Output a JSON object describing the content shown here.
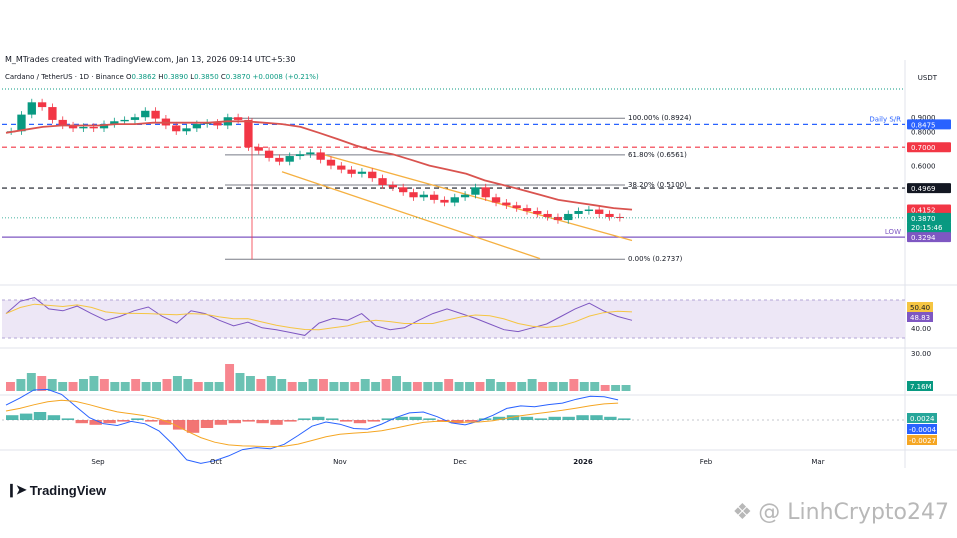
{
  "header": {
    "credit": "M_MTrades created with TradingView.com, Jan 13, 2026 09:14 UTC+5:30",
    "symbol": "Cardano / TetherUS · 1D · Binance",
    "o_label": "O",
    "o": "0.3862",
    "h_label": "H",
    "h": "0.3890",
    "l_label": "L",
    "l": "0.3850",
    "c_label": "C",
    "c": "0.3870",
    "change": "+0.0008 (+0.21%)",
    "unit": "USDT"
  },
  "branding": {
    "logo_text": "TradingView",
    "watermark": "@ LinhCrypto247"
  },
  "colors": {
    "up": "#089981",
    "down": "#f23645",
    "ma": "#d9534f",
    "channel": "#f5b041",
    "fib": "#787b86",
    "rsi": "#7e57c2",
    "macd_signal": "#f5a623",
    "macd": "#2962ff"
  },
  "chart_data": {
    "type": "line",
    "title": "",
    "price_axis": {
      "ticks": [
        "0.9000",
        "0.8000",
        "0.6000"
      ],
      "ylim": [
        0.25,
        1.15
      ],
      "scale": "log"
    },
    "time_axis": {
      "labels": [
        "Sep",
        "Oct",
        "Nov",
        "Dec",
        "2026",
        "Feb",
        "Mar"
      ]
    },
    "price_labels": [
      {
        "text": "0.8475",
        "color": "#2962ff"
      },
      {
        "text": "0.7000",
        "color": "#f23645"
      },
      {
        "text": "0.4969",
        "color": "#131722"
      },
      {
        "text": "0.4152",
        "color": "#f23645"
      },
      {
        "text": "0.3870",
        "color": "#089981"
      },
      {
        "text": "20:15:46",
        "color": "#089981"
      },
      {
        "text": "0.3814",
        "color": "#089981"
      },
      {
        "text": "0.3294",
        "color": "#7e57c2"
      }
    ],
    "horizontal_levels": [
      {
        "label": "Daily S/R",
        "value": 0.8475,
        "style": "dash",
        "color": "#2962ff"
      },
      {
        "label": "",
        "value": 0.7,
        "style": "dash",
        "color": "#f23645"
      },
      {
        "label": "",
        "value": 0.4969,
        "style": "dash",
        "color": "#131722"
      },
      {
        "label": "LOW",
        "value": 0.3294,
        "style": "solid",
        "color": "#7e57c2"
      }
    ],
    "fib_levels": [
      {
        "label": "100.00% (0.8924)",
        "value": 0.8924
      },
      {
        "label": "61.80% (0.6561)",
        "value": 0.6561
      },
      {
        "label": "38.20% (0.5100)",
        "value": 0.51
      },
      {
        "label": "0.00% (0.2737)",
        "value": 0.2737
      }
    ],
    "series": [
      {
        "name": "",
        "type": "candles",
        "values": [
          0.8,
          0.92,
          1.02,
          0.98,
          0.88,
          0.84,
          0.82,
          0.83,
          0.82,
          0.85,
          0.87,
          0.88,
          0.9,
          0.95,
          0.89,
          0.84,
          0.8,
          0.82,
          0.85,
          0.86,
          0.84,
          0.9,
          0.88,
          0.7,
          0.68,
          0.64,
          0.62,
          0.65,
          0.66,
          0.67,
          0.63,
          0.6,
          0.58,
          0.56,
          0.57,
          0.54,
          0.51,
          0.5,
          0.48,
          0.46,
          0.47,
          0.45,
          0.44,
          0.46,
          0.47,
          0.5,
          0.46,
          0.44,
          0.43,
          0.42,
          0.41,
          0.4,
          0.39,
          0.38,
          0.4,
          0.41,
          0.415,
          0.4,
          0.39,
          0.387
        ]
      },
      {
        "name": "",
        "type": "ma",
        "values": [
          0.79,
          0.81,
          0.83,
          0.84,
          0.84,
          0.84,
          0.85,
          0.85,
          0.86,
          0.86,
          0.86,
          0.86,
          0.87,
          0.87,
          0.86,
          0.85,
          0.83,
          0.79,
          0.75,
          0.71,
          0.68,
          0.66,
          0.63,
          0.6,
          0.58,
          0.56,
          0.53,
          0.51,
          0.49,
          0.47,
          0.45,
          0.44,
          0.43,
          0.42,
          0.415
        ]
      }
    ],
    "rsi": {
      "labels": [
        "50.40",
        "48.83",
        "40.00",
        "30.00"
      ],
      "values": [
        55,
        68,
        72,
        60,
        58,
        63,
        55,
        48,
        52,
        58,
        62,
        52,
        45,
        58,
        55,
        48,
        42,
        46,
        40,
        38,
        35,
        32,
        45,
        50,
        48,
        55,
        42,
        38,
        40,
        48,
        55,
        60,
        55,
        50,
        44,
        38,
        36,
        40,
        44,
        52,
        60,
        66,
        58,
        52,
        48
      ]
    },
    "volume": {
      "label": "7.16M",
      "values": [
        3,
        4,
        6,
        5,
        4,
        3,
        3,
        4,
        5,
        4,
        3,
        3,
        4,
        3,
        3,
        4,
        5,
        4,
        3,
        3,
        3,
        9,
        6,
        5,
        4,
        5,
        4,
        3,
        3,
        4,
        4,
        3,
        3,
        3,
        4,
        3,
        4,
        5,
        3,
        3,
        3,
        3,
        4,
        3,
        3,
        3,
        4,
        3,
        3,
        3,
        4,
        3,
        3,
        3,
        4,
        3,
        3,
        2,
        2,
        2
      ]
    },
    "macd": {
      "labels": [
        "0.0024",
        "-0.0004",
        "-0.0027"
      ],
      "hist": [
        3,
        4,
        5,
        3,
        1,
        -2,
        -3,
        -2,
        -1,
        1,
        -1,
        -3,
        -6,
        -8,
        -5,
        -3,
        -2,
        -1,
        -2,
        -3,
        -1,
        1,
        2,
        1,
        -1,
        -2,
        -1,
        1,
        2,
        2,
        1,
        -1,
        -2,
        -1,
        1,
        2,
        3,
        2,
        1,
        2,
        2,
        3,
        3,
        2,
        1
      ]
    }
  }
}
